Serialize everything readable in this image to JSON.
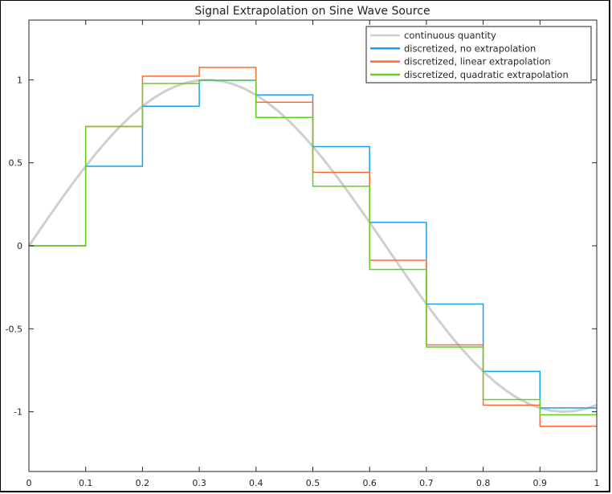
{
  "chart_data": {
    "type": "line",
    "title": "Signal Extrapolation on Sine Wave Source",
    "xlabel": "",
    "ylabel": "",
    "xlim": [
      0,
      1
    ],
    "ylim": [
      -1.36,
      1.36
    ],
    "xticks": [
      "0",
      "0.1",
      "0.2",
      "0.3",
      "0.4",
      "0.5",
      "0.6",
      "0.7",
      "0.8",
      "0.9",
      "1"
    ],
    "xtick_values": [
      0,
      0.1,
      0.2,
      0.3,
      0.4,
      0.5,
      0.6,
      0.7,
      0.8,
      0.9,
      1
    ],
    "yticks": [
      "-1",
      "-0.5",
      "0",
      "0.5",
      "1"
    ],
    "ytick_values": [
      -1,
      -0.5,
      0,
      0.5,
      1
    ],
    "grid": false,
    "legend_position": "top-right",
    "series": [
      {
        "name": "continuous quantity",
        "style": "line",
        "color": "#cfcfcf",
        "x": [
          0,
          0.02,
          0.04,
          0.06,
          0.08,
          0.1,
          0.12,
          0.14,
          0.16,
          0.18,
          0.2,
          0.22,
          0.24,
          0.26,
          0.28,
          0.3,
          0.32,
          0.34,
          0.36,
          0.38,
          0.4,
          0.42,
          0.44,
          0.46,
          0.48,
          0.5,
          0.52,
          0.54,
          0.56,
          0.58,
          0.6,
          0.62,
          0.64,
          0.66,
          0.68,
          0.7,
          0.72,
          0.74,
          0.76,
          0.78,
          0.8,
          0.82,
          0.84,
          0.86,
          0.88,
          0.9,
          0.92,
          0.94,
          0.96,
          0.98,
          1
        ],
        "y": [
          0,
          0.0998,
          0.1987,
          0.2955,
          0.3894,
          0.4794,
          0.5646,
          0.6442,
          0.7174,
          0.7833,
          0.8415,
          0.8912,
          0.932,
          0.9636,
          0.9854,
          0.9975,
          0.9996,
          0.9917,
          0.9738,
          0.9463,
          0.9093,
          0.8632,
          0.8085,
          0.7457,
          0.6755,
          0.5985,
          0.5155,
          0.4274,
          0.335,
          0.2392,
          0.1411,
          0.0416,
          -0.0584,
          -0.1577,
          -0.2555,
          -0.3508,
          -0.4425,
          -0.5298,
          -0.6119,
          -0.6878,
          -0.7568,
          -0.8183,
          -0.8716,
          -0.9162,
          -0.9516,
          -0.9775,
          -0.9937,
          -0.9999,
          -0.9962,
          -0.9825,
          -0.9589
        ]
      },
      {
        "name": "discretized, no extrapolation",
        "style": "stairs",
        "color": "#1a9ff0",
        "x": [
          0,
          0.1,
          0.2,
          0.3,
          0.4,
          0.5,
          0.6,
          0.7,
          0.8,
          0.9
        ],
        "y": [
          0,
          0.479,
          0.841,
          0.997,
          0.909,
          0.598,
          0.141,
          -0.351,
          -0.757,
          -0.977
        ]
      },
      {
        "name": "discretized, linear extrapolation",
        "style": "stairs",
        "color": "#ff6b35",
        "x": [
          0,
          0.1,
          0.2,
          0.3,
          0.4,
          0.5,
          0.6,
          0.7,
          0.8,
          0.9
        ],
        "y": [
          0,
          0.719,
          1.022,
          1.075,
          0.865,
          0.443,
          -0.087,
          -0.597,
          -0.96,
          -1.087
        ]
      },
      {
        "name": "discretized, quadratic extrapolation",
        "style": "stairs",
        "color": "#5fd121",
        "x": [
          0,
          0.1,
          0.2,
          0.3,
          0.4,
          0.5,
          0.6,
          0.7,
          0.8,
          0.9
        ],
        "y": [
          0,
          0.719,
          0.978,
          0.998,
          0.773,
          0.359,
          -0.143,
          -0.61,
          -0.927,
          -1.018
        ]
      }
    ]
  }
}
